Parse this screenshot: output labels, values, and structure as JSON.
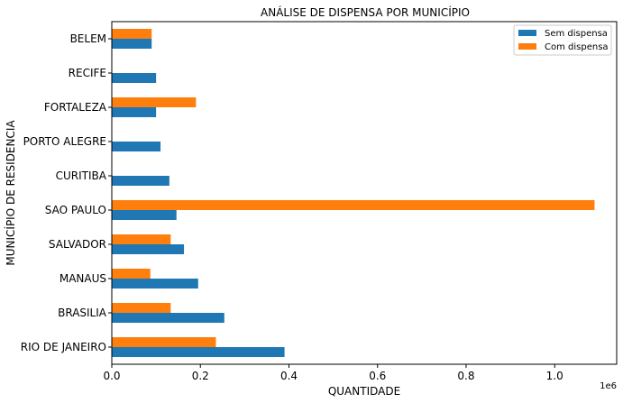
{
  "chart_data": {
    "type": "bar",
    "orientation": "horizontal",
    "title": "ANÁLISE DE DISPENSA POR MUNICÍPIO",
    "xlabel": "QUANTIDADE",
    "ylabel": "MUNICÍPIO DE RESIDENCIA",
    "x_offset_label": "1e6",
    "xlim": [
      0,
      1.14
    ],
    "xticks": [
      "0.0",
      "0.2",
      "0.4",
      "0.6",
      "0.8",
      "1.0"
    ],
    "categories": [
      "RIO DE JANEIRO",
      "BRASILIA",
      "MANAUS",
      "SALVADOR",
      "SAO PAULO",
      "CURITIBA",
      "PORTO ALEGRE",
      "FORTALEZA",
      "RECIFE",
      "BELEM"
    ],
    "series": [
      {
        "name": "Sem dispensa",
        "color": "#1f77b4",
        "values": [
          0.39,
          0.254,
          0.195,
          0.163,
          0.146,
          0.13,
          0.11,
          0.1,
          0.1,
          0.09
        ]
      },
      {
        "name": "Com dispensa",
        "color": "#ff7f0e",
        "values": [
          0.235,
          0.133,
          0.087,
          0.133,
          1.09,
          0,
          0,
          0.19,
          0,
          0.09
        ]
      }
    ],
    "grid": false,
    "legend_position": "top-right"
  }
}
